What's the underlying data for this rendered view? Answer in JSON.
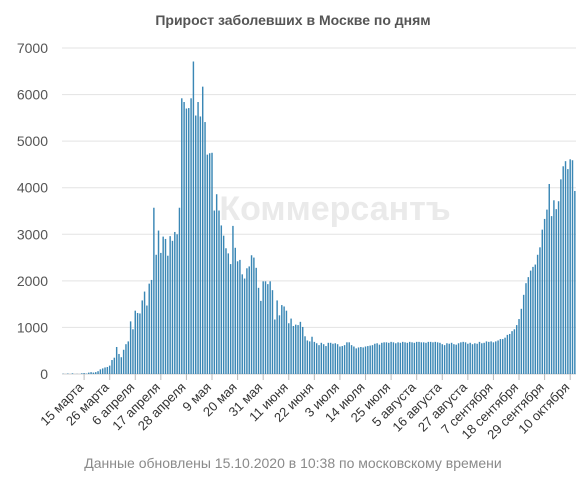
{
  "watermark": "Коммерсантъ",
  "footer": "Данные обновлены 15.10.2020 в 10:38 по московскому времени",
  "chart_data": {
    "type": "bar",
    "title": "Прирост заболевших в Москве по дням",
    "xlabel": "",
    "ylabel": "",
    "ylim": [
      0,
      7000
    ],
    "yticks": [
      0,
      1000,
      2000,
      3000,
      4000,
      5000,
      6000,
      7000
    ],
    "grid": true,
    "bar_color": "#3a87b5",
    "x_start": "2020-03-06",
    "x_end": "2020-10-15",
    "xtick_labels": [
      {
        "date": "2020-03-15",
        "label": "15 марта"
      },
      {
        "date": "2020-03-26",
        "label": "26 марта"
      },
      {
        "date": "2020-04-06",
        "label": "6 апреля"
      },
      {
        "date": "2020-04-17",
        "label": "17 апреля"
      },
      {
        "date": "2020-04-28",
        "label": "28 апреля"
      },
      {
        "date": "2020-05-09",
        "label": "9 мая"
      },
      {
        "date": "2020-05-20",
        "label": "20 мая"
      },
      {
        "date": "2020-05-31",
        "label": "31 мая"
      },
      {
        "date": "2020-06-11",
        "label": "11 июня"
      },
      {
        "date": "2020-06-22",
        "label": "22 июня"
      },
      {
        "date": "2020-07-03",
        "label": "3 июля"
      },
      {
        "date": "2020-07-14",
        "label": "14 июля"
      },
      {
        "date": "2020-07-25",
        "label": "25 июля"
      },
      {
        "date": "2020-08-05",
        "label": "5 августа"
      },
      {
        "date": "2020-08-16",
        "label": "16 августа"
      },
      {
        "date": "2020-08-27",
        "label": "27 августа"
      },
      {
        "date": "2020-09-07",
        "label": "7 сентября"
      },
      {
        "date": "2020-09-18",
        "label": "18 сентября"
      },
      {
        "date": "2020-09-29",
        "label": "29 сентября"
      },
      {
        "date": "2020-10-10",
        "label": "10 октября"
      }
    ],
    "values": [
      6,
      0,
      10,
      0,
      14,
      0,
      3,
      0,
      15,
      20,
      9,
      30,
      40,
      30,
      40,
      60,
      100,
      120,
      140,
      150,
      180,
      300,
      350,
      580,
      430,
      360,
      520,
      640,
      700,
      1130,
      960,
      1360,
      1310,
      1300,
      1580,
      1770,
      1470,
      1940,
      2020,
      3570,
      2560,
      3080,
      2600,
      2950,
      2900,
      2540,
      2960,
      2860,
      3050,
      3000,
      3570,
      5920,
      5840,
      5700,
      5710,
      5920,
      6710,
      5550,
      5840,
      5530,
      6170,
      5410,
      4710,
      4740,
      4750,
      3510,
      3860,
      3510,
      3190,
      2970,
      2700,
      2590,
      2360,
      3180,
      2710,
      2420,
      2450,
      2140,
      2050,
      2270,
      2310,
      2550,
      2500,
      2280,
      1850,
      1570,
      1990,
      1990,
      1930,
      1990,
      1800,
      1170,
      1580,
      1260,
      1480,
      1450,
      1360,
      1090,
      1190,
      1030,
      1060,
      1050,
      1120,
      1010,
      810,
      720,
      700,
      800,
      690,
      660,
      620,
      670,
      640,
      600,
      670,
      670,
      650,
      660,
      640,
      590,
      600,
      620,
      680,
      680,
      620,
      590,
      550,
      570,
      580,
      570,
      590,
      600,
      610,
      620,
      650,
      660,
      630,
      670,
      680,
      680,
      670,
      690,
      680,
      660,
      680,
      670,
      690,
      680,
      670,
      690,
      680,
      670,
      690,
      690,
      680,
      680,
      670,
      690,
      690,
      680,
      690,
      680,
      670,
      640,
      620,
      660,
      650,
      670,
      640,
      630,
      660,
      680,
      690,
      680,
      650,
      670,
      640,
      660,
      650,
      690,
      660,
      670,
      700,
      690,
      700,
      680,
      700,
      720,
      750,
      750,
      780,
      840,
      860,
      920,
      960,
      1050,
      1180,
      1400,
      1700,
      1950,
      2080,
      2220,
      2300,
      2350,
      2560,
      2720,
      3100,
      3330,
      3530,
      4080,
      3390,
      3730,
      3540,
      3710,
      4180,
      4460,
      4570,
      4400,
      4610,
      4590,
      3930
    ]
  }
}
